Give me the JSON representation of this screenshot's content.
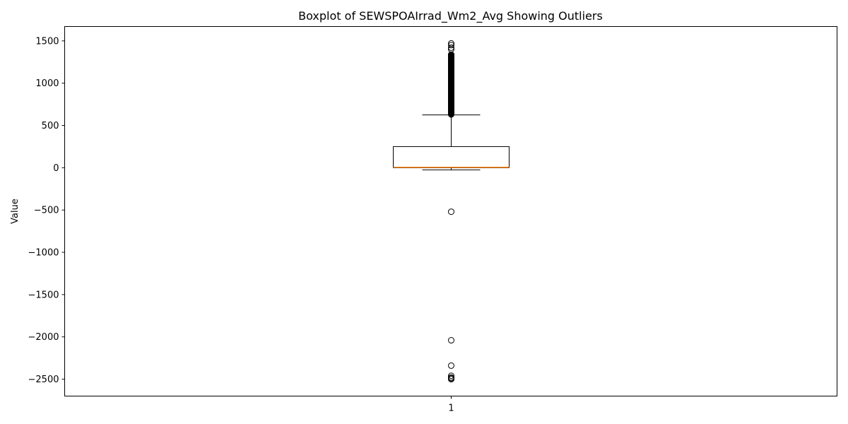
{
  "chart_data": {
    "type": "boxplot",
    "title": "Boxplot of SEWSPOAIrrad_Wm2_Avg Showing Outliers",
    "xlabel": "",
    "ylabel": "Value",
    "ylim": [
      -2700,
      1670
    ],
    "yticks": [
      1500,
      1000,
      500,
      0,
      -500,
      -1000,
      -1500,
      -2000,
      -2500
    ],
    "ytick_labels": [
      "1500",
      "1000",
      "500",
      "0",
      "−500",
      "−1000",
      "−1500",
      "−2000",
      "−2500"
    ],
    "categories": [
      "1"
    ],
    "box": {
      "whisker_low": -25,
      "q1": 0,
      "median": 5,
      "q3": 250,
      "whisker_high": 625
    },
    "outliers_high_range": [
      630,
      1340
    ],
    "outliers": [
      1470,
      1450,
      1420,
      1400,
      -520,
      -2040,
      -2340,
      -2460,
      -2480,
      -2490,
      -2500
    ],
    "colors": {
      "box": "#000000",
      "median": "#ff7f0e",
      "outlier": "#000000"
    },
    "grid": false
  }
}
